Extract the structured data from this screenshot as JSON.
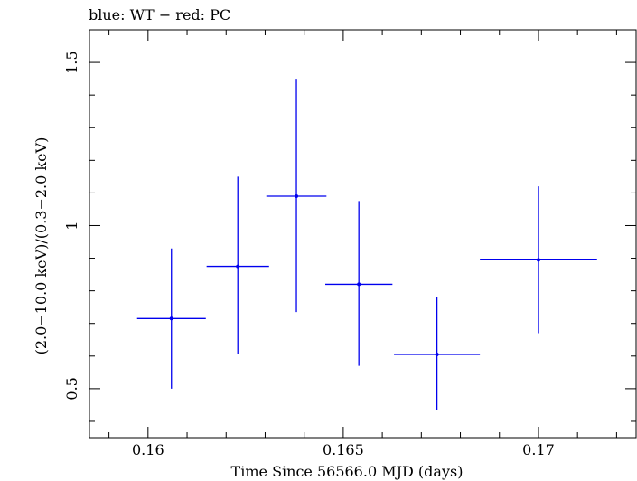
{
  "chart_data": {
    "type": "scatter",
    "title": "blue: WT − red: PC",
    "xlabel": "Time Since 56566.0 MJD (days)",
    "ylabel": "(2.0−10.0 keV)/(0.3−2.0 keV)",
    "xlim": [
      0.1585,
      0.1725
    ],
    "ylim": [
      0.35,
      1.6
    ],
    "xticks": [
      0.16,
      0.165,
      0.17
    ],
    "xtick_labels": [
      "0.16",
      "0.165",
      "0.17"
    ],
    "yticks": [
      0.5,
      1.0,
      1.5
    ],
    "ytick_labels": [
      "0.5",
      "1",
      "1.5"
    ],
    "grid": false,
    "series": [
      {
        "color": "#0000ee",
        "points": [
          {
            "x": 0.1606,
            "y": 0.715,
            "xerr": 0.00088,
            "ylo": 0.5,
            "yhi": 0.93
          },
          {
            "x": 0.1623,
            "y": 0.875,
            "xerr": 0.0008,
            "ylo": 0.605,
            "yhi": 1.15
          },
          {
            "x": 0.1638,
            "y": 1.09,
            "xerr": 0.00077,
            "ylo": 0.735,
            "yhi": 1.45
          },
          {
            "x": 0.1654,
            "y": 0.82,
            "xerr": 0.00086,
            "ylo": 0.57,
            "yhi": 1.075
          },
          {
            "x": 0.1674,
            "y": 0.605,
            "xerr": 0.0011,
            "ylo": 0.435,
            "yhi": 0.78
          },
          {
            "x": 0.17,
            "y": 0.895,
            "xerr": 0.0015,
            "ylo": 0.67,
            "yhi": 1.12
          }
        ]
      }
    ]
  }
}
